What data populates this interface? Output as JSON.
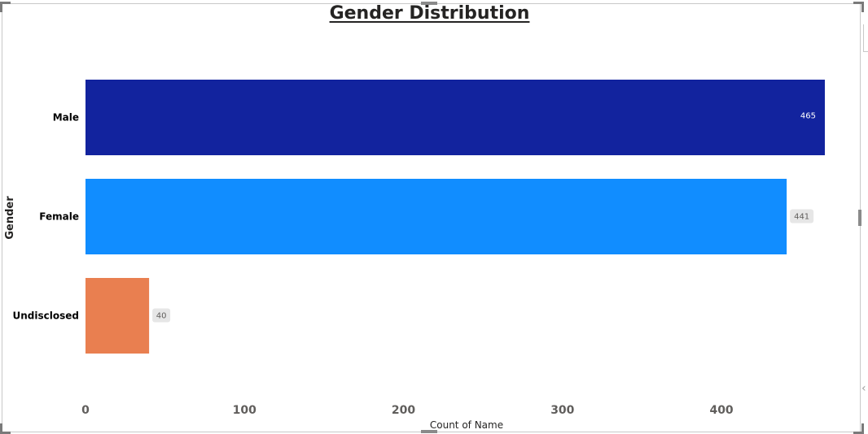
{
  "chart_data": {
    "type": "bar",
    "orientation": "horizontal",
    "title": "Gender Distribution",
    "xlabel": "Count of Name",
    "ylabel": "Gender",
    "categories": [
      "Male",
      "Female",
      "Undisclosed"
    ],
    "values": [
      465,
      441,
      40
    ],
    "colors": [
      "#12239E",
      "#118DFF",
      "#E97F50"
    ],
    "data_labels": [
      "465",
      "441",
      "40"
    ],
    "xlim": [
      0,
      465
    ],
    "xticks": [
      0,
      100,
      200,
      300,
      400
    ],
    "grid": false,
    "legend": "none"
  }
}
